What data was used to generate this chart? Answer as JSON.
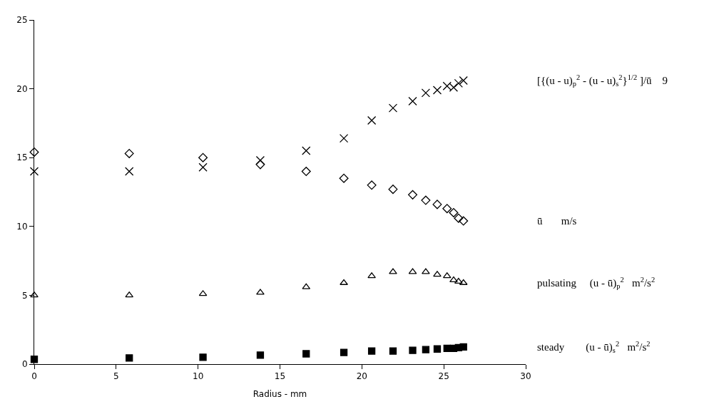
{
  "chart_data": {
    "type": "scatter",
    "xlabel": "Radius - mm",
    "xlim": [
      0,
      30
    ],
    "xticks": [
      0,
      5,
      10,
      15,
      20,
      25,
      30
    ],
    "ylim": [
      0,
      25
    ],
    "yticks": [
      0,
      5,
      10,
      15,
      20,
      25
    ],
    "grid": false,
    "legend": false,
    "x": [
      0,
      5.8,
      10.3,
      13.8,
      16.6,
      18.9,
      20.6,
      21.9,
      23.1,
      23.9,
      24.6,
      25.2,
      25.6,
      25.9,
      26.2
    ],
    "series": [
      {
        "name": "[{(u - u)$_{p}$$^{2}$ - (u - u)$_{s}$$^{2}$}$^{1/2}$ ]/ū    9",
        "color": "#000000",
        "marker": "cross",
        "values": [
          14.0,
          14.0,
          14.3,
          14.8,
          15.5,
          16.4,
          17.7,
          18.6,
          19.1,
          19.7,
          19.9,
          20.2,
          20.1,
          20.4,
          20.6
        ]
      },
      {
        "name": "ū       m/s",
        "color": "#000000",
        "marker": "diamond",
        "values": [
          15.4,
          15.3,
          15.0,
          14.5,
          14.0,
          13.5,
          13.0,
          12.7,
          12.3,
          11.9,
          11.6,
          11.3,
          11.0,
          10.6,
          10.4
        ]
      },
      {
        "name": "pulsating     (u - ū)$_{p}$$^{2}$   m$^{2}$/s$^{2}$",
        "color": "#000000",
        "marker": "triangle",
        "values": [
          5.0,
          5.0,
          5.1,
          5.2,
          5.6,
          5.9,
          6.4,
          6.7,
          6.7,
          6.7,
          6.5,
          6.4,
          6.1,
          6.0,
          5.9
        ]
      },
      {
        "name": "steady        (u - ū)$_{s}$$^{2}$   m$^{2}$/s$^{2}$",
        "color": "#000000",
        "marker": "square",
        "values": [
          0.35,
          0.45,
          0.5,
          0.65,
          0.75,
          0.85,
          0.95,
          0.95,
          1.0,
          1.05,
          1.1,
          1.15,
          1.15,
          1.2,
          1.25
        ]
      }
    ]
  }
}
